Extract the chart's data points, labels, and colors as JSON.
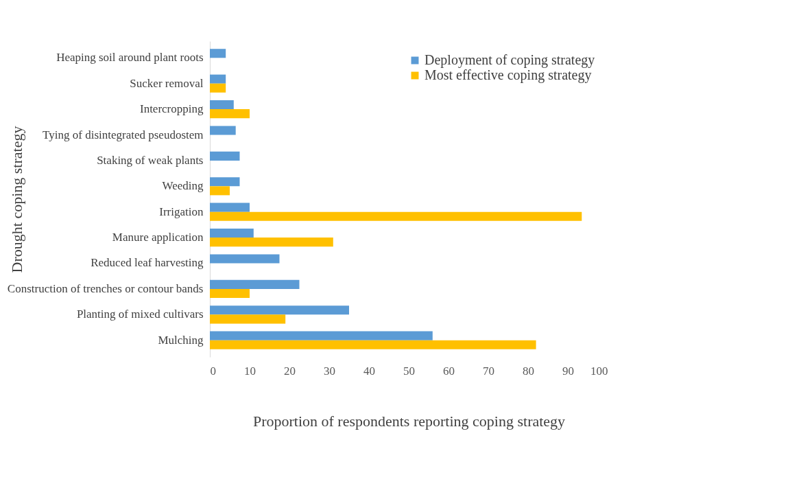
{
  "chart_data": {
    "type": "bar",
    "orientation": "horizontal",
    "xlabel": "Proportion of respondents reporting coping strategy",
    "ylabel": "Drought coping strategy",
    "categories": [
      "Heaping soil around plant roots",
      "Sucker removal",
      "Intercropping",
      "Tying of disintegrated pseudostem",
      "Staking of weak plants",
      "Weeding",
      "Irrigation",
      "Manure application",
      "Reduced leaf harvesting",
      "Construction of trenches or contour bands",
      "Planting of mixed cultivars",
      "Mulching"
    ],
    "series": [
      {
        "name": "Deployment of coping strategy",
        "color": "#5b9bd5",
        "values": [
          4,
          4,
          6,
          6.5,
          7.5,
          7.5,
          10,
          11,
          17.5,
          22.5,
          35,
          56
        ]
      },
      {
        "name": "Most effective coping strategy",
        "color": "#ffc000",
        "values": [
          null,
          4,
          10,
          null,
          null,
          5,
          93.5,
          31,
          null,
          10,
          19,
          82
        ]
      }
    ],
    "xlim": [
      0,
      100
    ],
    "xticks": [
      0,
      10,
      20,
      30,
      40,
      50,
      60,
      70,
      80,
      90,
      100
    ],
    "grid": false,
    "legend": "top right"
  }
}
